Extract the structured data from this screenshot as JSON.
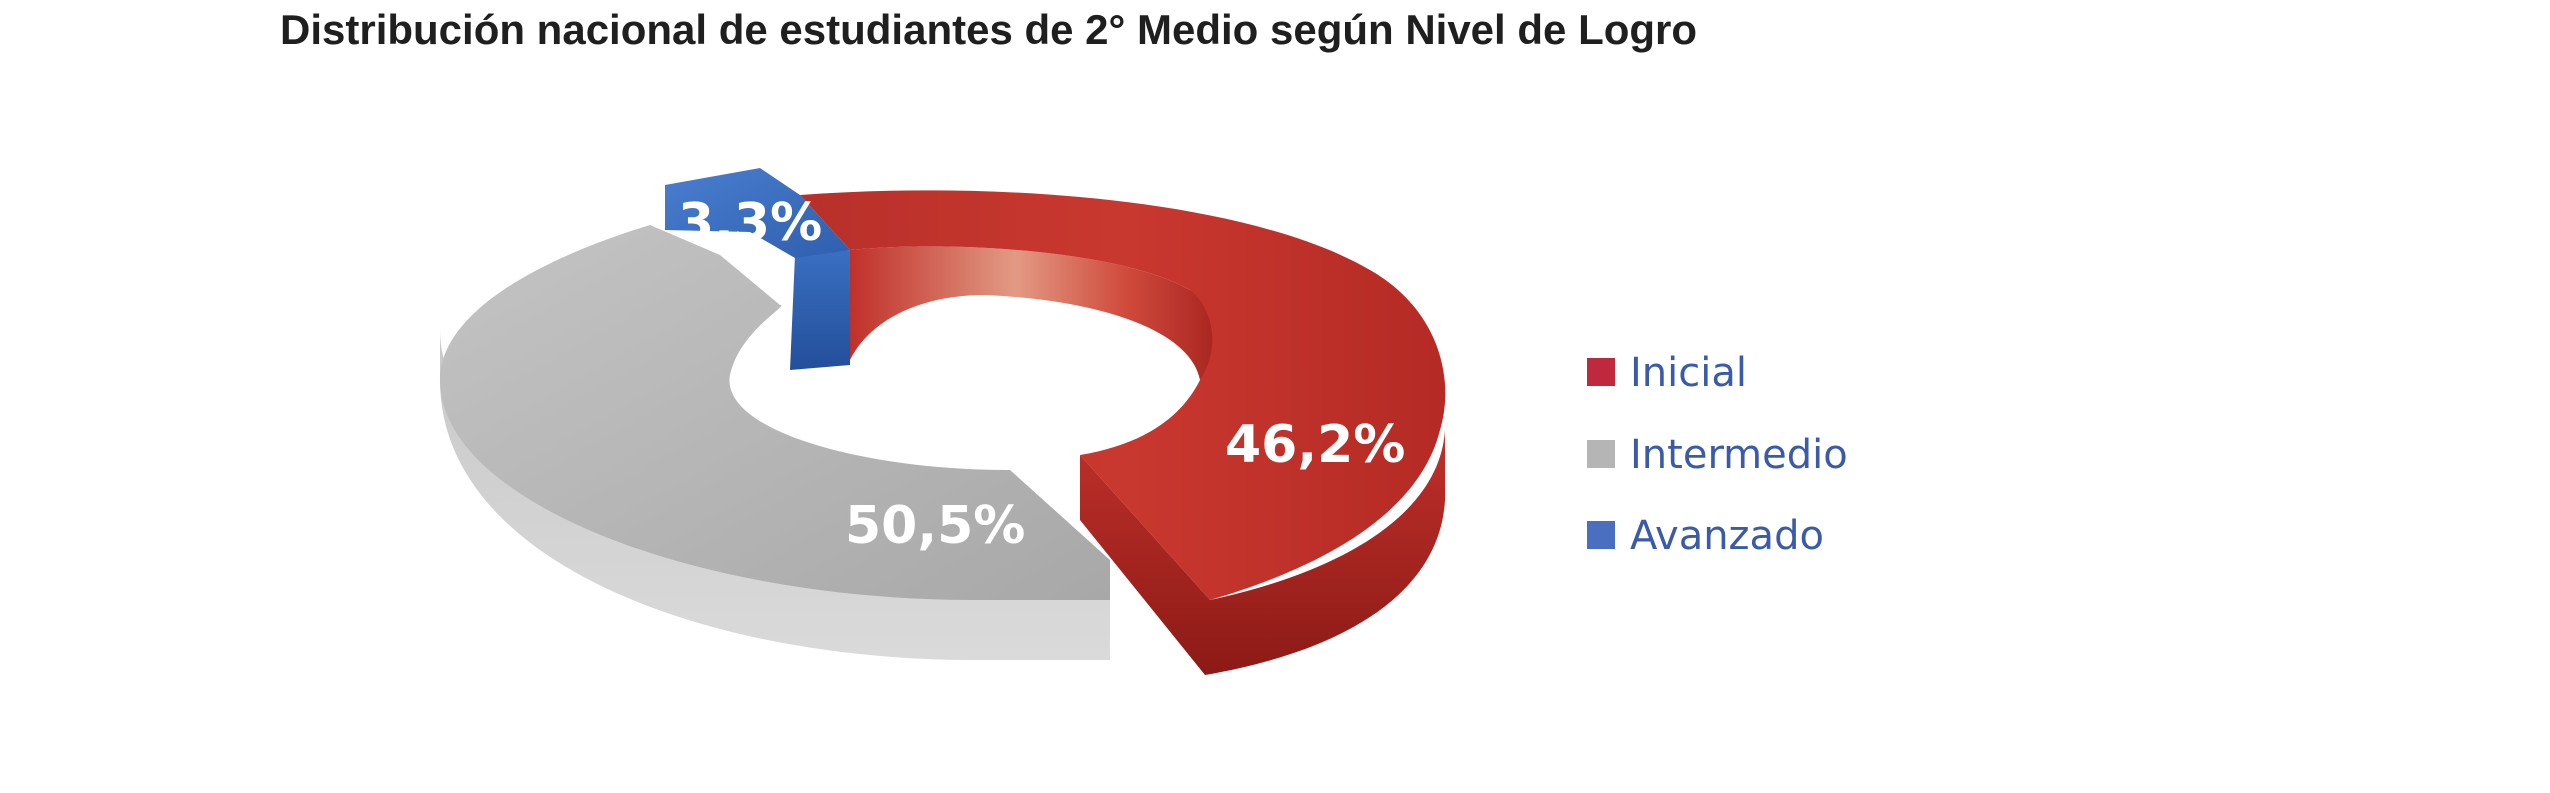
{
  "chart_data": {
    "type": "pie",
    "title": "Distribución nacional de estudiantes de 2° Medio según Nivel de Logro",
    "series": [
      {
        "name": "Inicial",
        "value": 46.2,
        "label": "46,2%",
        "color": "#c0302b",
        "legend_color": "#c0283d"
      },
      {
        "name": "Intermedio",
        "value": 50.5,
        "label": "50,5%",
        "color": "#bdbdbd",
        "legend_color": "#b5b5b5"
      },
      {
        "name": "Avanzado",
        "value": 3.3,
        "label": "3,3%",
        "color": "#3a6fc2",
        "legend_color": "#4a6fc0"
      }
    ],
    "legend_position": "right"
  }
}
